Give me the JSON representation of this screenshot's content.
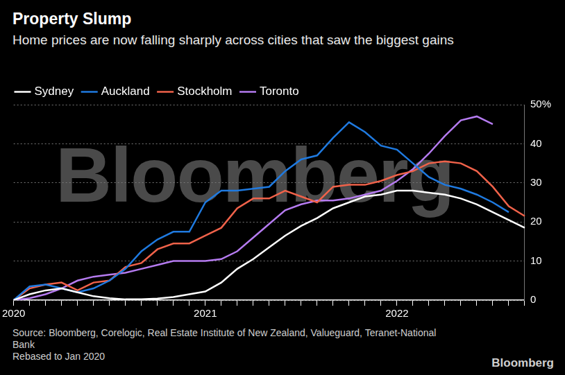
{
  "chart_data": {
    "type": "line",
    "title": "Property Slump",
    "subtitle": "Home prices are now falling sharply across cities that saw the biggest gains",
    "watermark": "Bloomberg",
    "source": "Source: Bloomberg, Corelogic, Real Estate Institute of New Zealand, Valueguard, Teranet-National Bank",
    "note": "Rebased to Jan 2020",
    "logo": "Bloomberg",
    "categories": [
      "2020",
      null,
      null,
      null,
      null,
      null,
      null,
      null,
      null,
      null,
      null,
      null,
      "2021",
      null,
      null,
      null,
      null,
      null,
      null,
      null,
      null,
      null,
      null,
      null,
      "2022",
      null,
      null,
      null,
      null,
      null,
      null,
      null,
      null
    ],
    "series": [
      {
        "name": "Sydney",
        "color": "#ffffff",
        "values": [
          0,
          1.5,
          2.5,
          3,
          2,
          1,
          0.5,
          0.2,
          0.2,
          0.4,
          0.8,
          1.5,
          2.2,
          4.5,
          8,
          10.5,
          13.5,
          16.5,
          19,
          21,
          23.5,
          25,
          26.5,
          27,
          28,
          28,
          27.5,
          27,
          26,
          24.5,
          22.5,
          20.5,
          18.5
        ]
      },
      {
        "name": "Auckland",
        "color": "#1f7ae0",
        "values": [
          0,
          3.5,
          4,
          3,
          2,
          3,
          5,
          8,
          12.5,
          15.5,
          17.5,
          17.5,
          25,
          28,
          28,
          28.5,
          29,
          33,
          36,
          37,
          41.5,
          45.5,
          43,
          39.5,
          38.5,
          35,
          31.5,
          29.5,
          28.5,
          27,
          25,
          22.5,
          null
        ]
      },
      {
        "name": "Stockholm",
        "color": "#f0624a",
        "values": [
          0,
          3,
          4,
          4.5,
          2.5,
          4.5,
          5,
          8.5,
          9.5,
          13,
          14.5,
          14.5,
          16.5,
          18.5,
          23.5,
          26,
          26,
          28,
          26.5,
          25,
          29,
          29.5,
          29.5,
          30.5,
          32,
          33,
          35,
          35.5,
          35,
          33,
          29,
          24,
          21.5
        ]
      },
      {
        "name": "Toronto",
        "color": "#b57bf0",
        "values": [
          0,
          0.5,
          1.5,
          3,
          5,
          6,
          6.5,
          7,
          8,
          9,
          10,
          10,
          10,
          10.5,
          12.5,
          16,
          19.5,
          23,
          24.5,
          25.5,
          25.5,
          26,
          27,
          28,
          30.5,
          33.5,
          37.5,
          42,
          46,
          47,
          45,
          null,
          null
        ]
      }
    ],
    "ylim": [
      0,
      50
    ],
    "yticks": [
      0,
      10,
      20,
      30,
      40,
      {
        "value": 50,
        "label": "50%"
      }
    ],
    "grid": true,
    "legend": "top-left"
  }
}
